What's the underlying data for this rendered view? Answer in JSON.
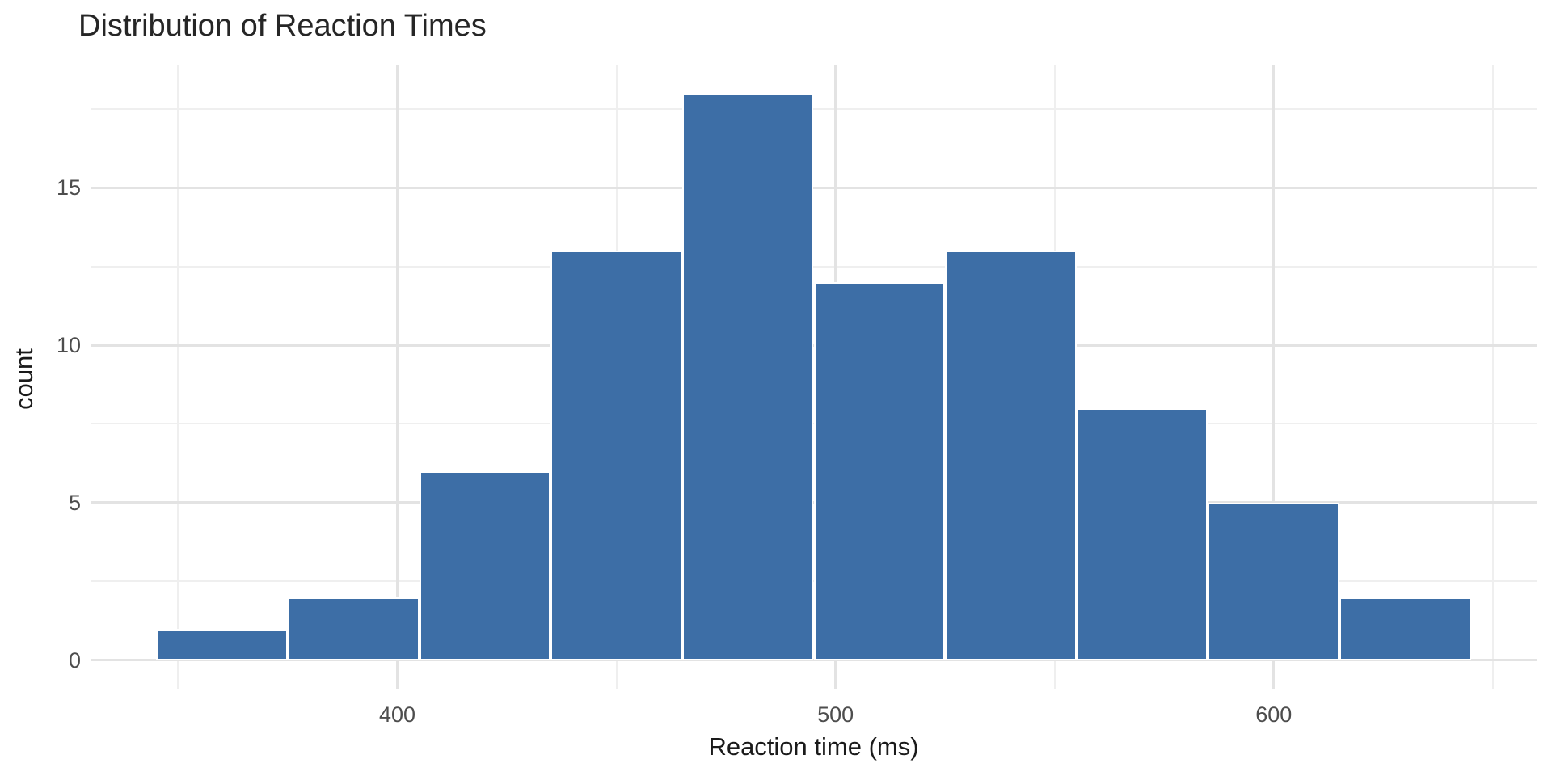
{
  "chart_data": {
    "type": "bar",
    "subtype": "histogram",
    "title": "Distribution of Reaction Times",
    "xlabel": "Reaction time (ms)",
    "ylabel": "count",
    "bin_start": 345,
    "bin_width": 30,
    "bin_edges": [
      345,
      375,
      405,
      435,
      465,
      495,
      525,
      555,
      585,
      615,
      645
    ],
    "values": [
      1,
      2,
      6,
      13,
      18,
      12,
      13,
      8,
      5,
      2
    ],
    "x_tick_labels": [
      "400",
      "500",
      "600"
    ],
    "x_tick_values": [
      400,
      500,
      600
    ],
    "x_minor_values": [
      350,
      450,
      550,
      650
    ],
    "y_tick_labels": [
      "0",
      "5",
      "10",
      "15"
    ],
    "y_tick_values": [
      0,
      5,
      10,
      15
    ],
    "y_minor_values": [
      2.5,
      7.5,
      12.5,
      17.5
    ],
    "xlim": [
      330,
      660
    ],
    "ylim": [
      -0.9,
      18.9
    ],
    "grid": "on",
    "legend": "none",
    "colors": {
      "bar_fill": "#3D6EA6",
      "bar_border": "#FFFFFF",
      "grid_major": "#E3E3E3",
      "grid_minor": "#EFEFEF",
      "tick_label": "#4D4D4D",
      "title_text": "#262626",
      "axis_title_text": "#1A1A1A",
      "background": "#FFFFFF"
    }
  }
}
